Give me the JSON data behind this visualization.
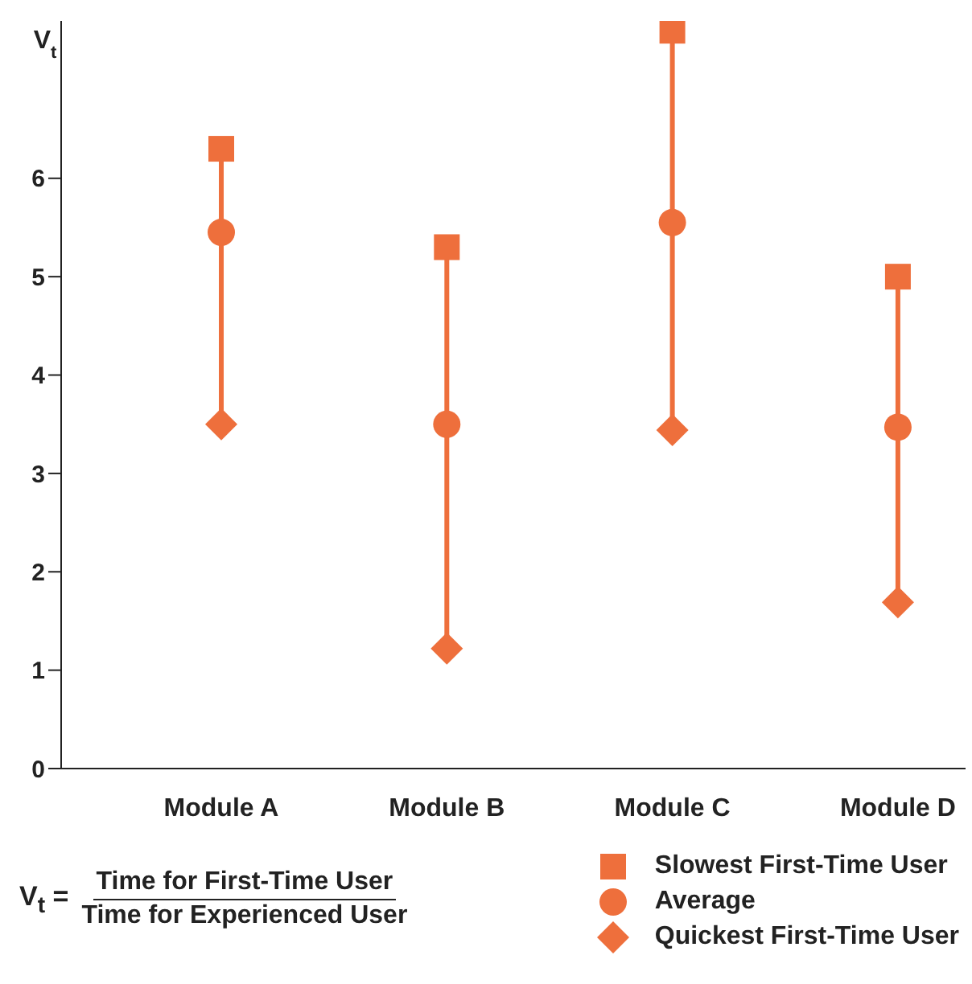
{
  "chart_data": {
    "type": "scatter",
    "ylabel": "V$_{t}$",
    "categories": [
      "Module A",
      "Module B",
      "Module C",
      "Module D"
    ],
    "series": [
      {
        "name": "Slowest First-Time User",
        "color": "#ee6f3c",
        "marker": "square",
        "values": [
          6.3,
          5.3,
          7.5,
          5.0
        ]
      },
      {
        "name": "Average",
        "color": "#ee6f3c",
        "marker": "circle",
        "values": [
          5.45,
          3.5,
          5.55,
          3.47
        ]
      },
      {
        "name": "Quickest First-Time User",
        "color": "#ee6f3c",
        "marker": "diamond",
        "values": [
          3.5,
          1.22,
          3.44,
          1.69
        ]
      }
    ],
    "ylim": [
      0,
      7.6
    ],
    "yticks": [
      0,
      1,
      2,
      3,
      4,
      5,
      6
    ],
    "grid": false,
    "legend": "bottom right",
    "annotations": [
      "V$_{t}$ =",
      "Time for First-Time User",
      "Time for Experienced User"
    ]
  }
}
